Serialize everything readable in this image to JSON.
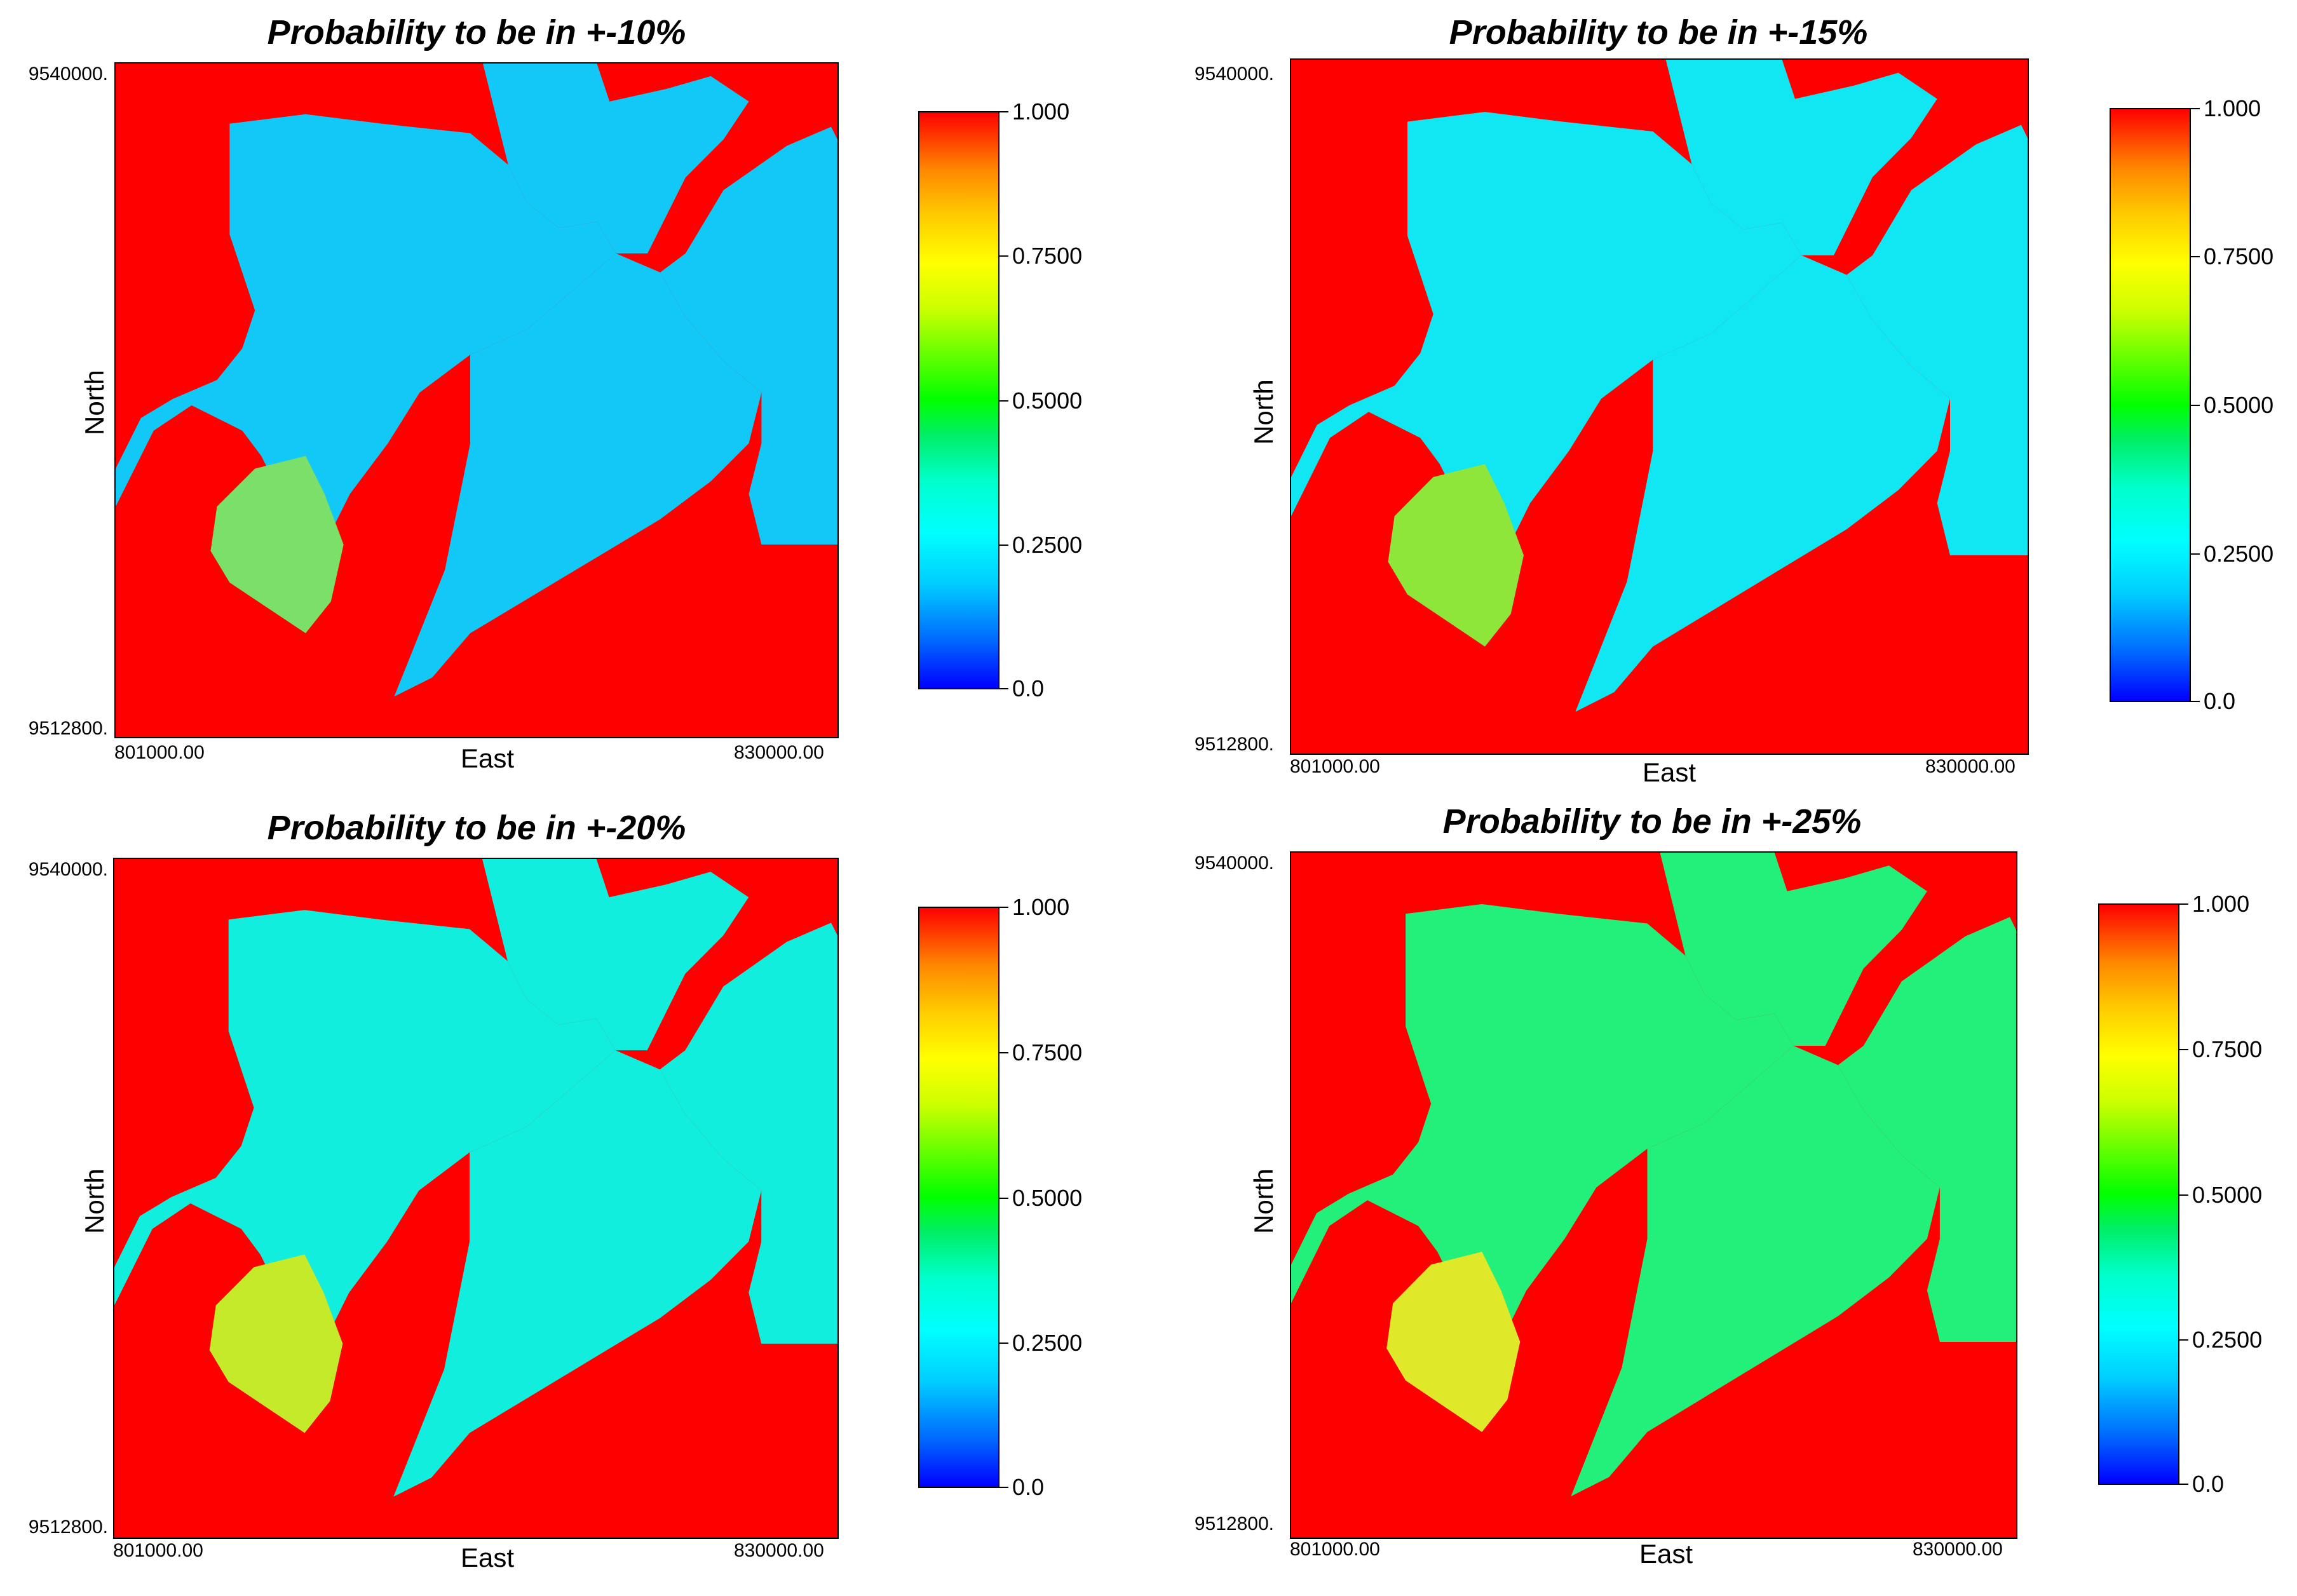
{
  "colors": {
    "background_red": "#ff0000",
    "cyan": "#00f0ff",
    "blue": "#12a4f7",
    "green": "#13f02d",
    "yellow": "#f5ea00"
  },
  "chart_data": [
    {
      "type": "heatmap",
      "title": "Probability to be in +-10%",
      "xlabel": "East",
      "ylabel": "North",
      "x_ticks": [
        "801000.00",
        "830000.00"
      ],
      "y_ticks": [
        "9540000.",
        "9512800."
      ],
      "xlim": [
        801000,
        830000
      ],
      "ylim": [
        9512800,
        9540000
      ],
      "colorbar": {
        "ticks": [
          "1.000",
          "0.7500",
          "0.5000",
          "0.2500",
          "0.0"
        ],
        "range": [
          0,
          1
        ]
      },
      "level": 0.1
    },
    {
      "type": "heatmap",
      "title": "Probability to be in +-15%",
      "xlabel": "East",
      "ylabel": "North",
      "x_ticks": [
        "801000.00",
        "830000.00"
      ],
      "y_ticks": [
        "9540000.",
        "9512800."
      ],
      "xlim": [
        801000,
        830000
      ],
      "ylim": [
        9512800,
        9540000
      ],
      "colorbar": {
        "ticks": [
          "1.000",
          "0.7500",
          "0.5000",
          "0.2500",
          "0.0"
        ],
        "range": [
          0,
          1
        ]
      },
      "level": 0.2
    },
    {
      "type": "heatmap",
      "title": "Probability to be in +-20%",
      "xlabel": "East",
      "ylabel": "North",
      "x_ticks": [
        "801000.00",
        "830000.00"
      ],
      "y_ticks": [
        "9540000.",
        "9512800."
      ],
      "xlim": [
        801000,
        830000
      ],
      "ylim": [
        9512800,
        9540000
      ],
      "colorbar": {
        "ticks": [
          "1.000",
          "0.7500",
          "0.5000",
          "0.2500",
          "0.0"
        ],
        "range": [
          0,
          1
        ]
      },
      "level": 0.3
    },
    {
      "type": "heatmap",
      "title": "Probability to be in +-25%",
      "xlabel": "East",
      "ylabel": "North",
      "x_ticks": [
        "801000.00",
        "830000.00"
      ],
      "y_ticks": [
        "9540000.",
        "9512800."
      ],
      "xlim": [
        801000,
        830000
      ],
      "ylim": [
        9512800,
        9540000
      ],
      "colorbar": {
        "ticks": [
          "1.000",
          "0.7500",
          "0.5000",
          "0.2500",
          "0.0"
        ],
        "range": [
          0,
          1
        ]
      },
      "level": 0.45
    }
  ]
}
